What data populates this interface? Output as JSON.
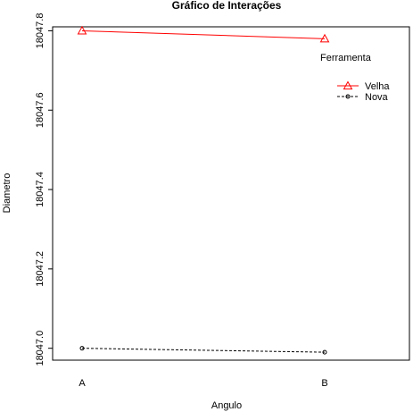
{
  "chart_data": {
    "type": "line",
    "title": "Gráfico de Interações",
    "xlabel": "Angulo",
    "ylabel": "Diametro",
    "categories": [
      "A",
      "B"
    ],
    "series": [
      {
        "name": "Velha",
        "values": [
          18047.8,
          18047.78
        ],
        "color": "#ff0000",
        "marker": "triangle",
        "line": "solid"
      },
      {
        "name": "Nova",
        "values": [
          18047.0,
          18046.99
        ],
        "color": "#000000",
        "marker": "circle",
        "line": "dashed"
      }
    ],
    "ylim": [
      18046.97,
      18047.81
    ],
    "yticks": [
      18047.0,
      18047.2,
      18047.4,
      18047.6,
      18047.8
    ],
    "ytick_labels": [
      "18047.0",
      "18047.2",
      "18047.4",
      "18047.6",
      "18047.8"
    ],
    "grid": false,
    "legend": {
      "title": "Ferramenta",
      "placement": "top-right"
    }
  }
}
